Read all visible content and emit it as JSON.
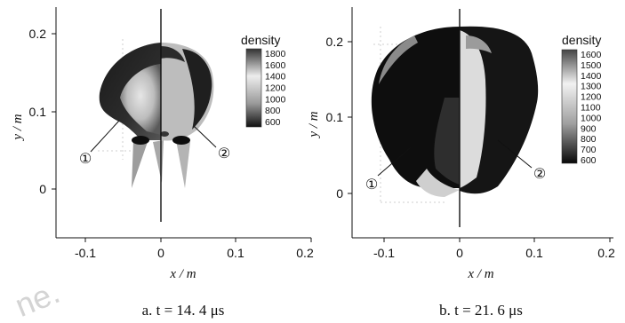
{
  "panels": [
    {
      "id": "a",
      "caption": "a.  t = 14. 4  μs",
      "xlabel": "x / m",
      "ylabel": "y / m",
      "xticks": [
        "-0.1",
        "0",
        "0.1",
        "0.2"
      ],
      "yticks": [
        "0",
        "0.1",
        "0.2"
      ],
      "colorbar_title": "density",
      "colorbar_ticks": [
        "1800",
        "1600",
        "1400",
        "1200",
        "1000",
        "800",
        "600"
      ],
      "markers": [
        "①",
        "②"
      ]
    },
    {
      "id": "b",
      "caption": "b.  t = 21. 6  μs",
      "xlabel": "x / m",
      "ylabel": "y / m",
      "xticks": [
        "-0.1",
        "0",
        "0.1",
        "0.2"
      ],
      "yticks": [
        "0",
        "0.1",
        "0.2"
      ],
      "colorbar_title": "density",
      "colorbar_ticks": [
        "1600",
        "1500",
        "1400",
        "1300",
        "1200",
        "1100",
        "1000",
        "900",
        "800",
        "700",
        "600"
      ],
      "markers": [
        "①",
        "②"
      ]
    }
  ],
  "watermark": "ne."
}
